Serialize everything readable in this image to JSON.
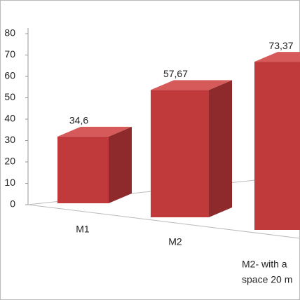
{
  "chart_data": {
    "type": "bar3d",
    "categories": [
      "M1",
      "M2",
      [
        "M2- with a",
        "space 20 m"
      ]
    ],
    "values": [
      34.6,
      57.67,
      73.37
    ],
    "value_labels": [
      "34,6",
      "57,67",
      "73,37"
    ],
    "color": "#c0393b",
    "ylim": [
      0,
      80
    ],
    "yticks": [
      0,
      10,
      20,
      30,
      40,
      50,
      60,
      70,
      80
    ]
  }
}
